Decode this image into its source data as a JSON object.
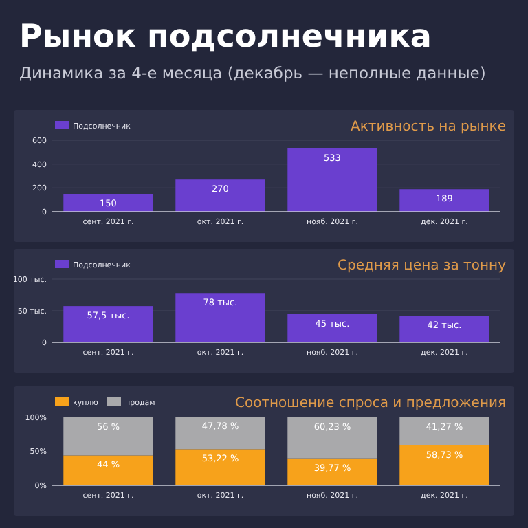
{
  "chart_data": [
    {
      "type": "other",
      "title": "Рынок подсолнечника",
      "subtitle": "Динамика за 4-е месяца (декабрь — неполные данные)"
    },
    {
      "type": "bar",
      "title": "Активность на рынке",
      "categories": [
        "сент. 2021 г.",
        "окт. 2021 г.",
        "нояб. 2021 г.",
        "дек. 2021 г."
      ],
      "series": [
        {
          "name": "Подсолнечник",
          "color": "#6a3fcf",
          "values": [
            150,
            270,
            533,
            189
          ]
        }
      ],
      "ylim": [
        0,
        600
      ],
      "yticks": [
        0,
        200,
        400,
        600
      ],
      "grid": "y",
      "legend": "top left",
      "data_labels": true
    },
    {
      "type": "bar",
      "title": "Средняя цена за тонну",
      "categories": [
        "сент. 2021 г.",
        "окт. 2021 г.",
        "нояб. 2021 г.",
        "дек. 2021 г."
      ],
      "series": [
        {
          "name": "Подсолнечник",
          "color": "#6a3fcf",
          "values": [
            57.5,
            78,
            45,
            42
          ],
          "value_labels": [
            "57,5 тыс.",
            "78 тыс.",
            "45 тыс.",
            "42 тыс."
          ]
        }
      ],
      "ylim": [
        0,
        100
      ],
      "yticks": [
        0,
        {
          "value": 50,
          "label": "50 тыс."
        },
        {
          "value": 100,
          "label": "100 тыс."
        }
      ],
      "grid": "y",
      "legend": "top left"
    },
    {
      "type": "bar",
      "title": "Соотношение спроса и предложения",
      "categories": [
        "сент. 2021 г.",
        "окт. 2021 г.",
        "нояб. 2021 г.",
        "дек. 2021 г."
      ],
      "stacked": true,
      "series": [
        {
          "name": "куплю",
          "color": "#f7a21b",
          "values": [
            44,
            53.22,
            39.77,
            58.73
          ],
          "value_labels": [
            "44 %",
            "53,22 %",
            "39,77 %",
            "58,73 %"
          ]
        },
        {
          "name": "продам",
          "color": "#a9a9ab",
          "values": [
            56,
            47.78,
            60.23,
            41.27
          ],
          "value_labels": [
            "56 %",
            "47,78 %",
            "60,23 %",
            "41,27 %"
          ]
        }
      ],
      "ylim": [
        0,
        101
      ],
      "yticks": [
        {
          "value": 0,
          "label": "0%"
        },
        {
          "value": 50,
          "label": "50%"
        },
        {
          "value": 100,
          "label": "100%"
        }
      ],
      "legend": "top left"
    }
  ]
}
